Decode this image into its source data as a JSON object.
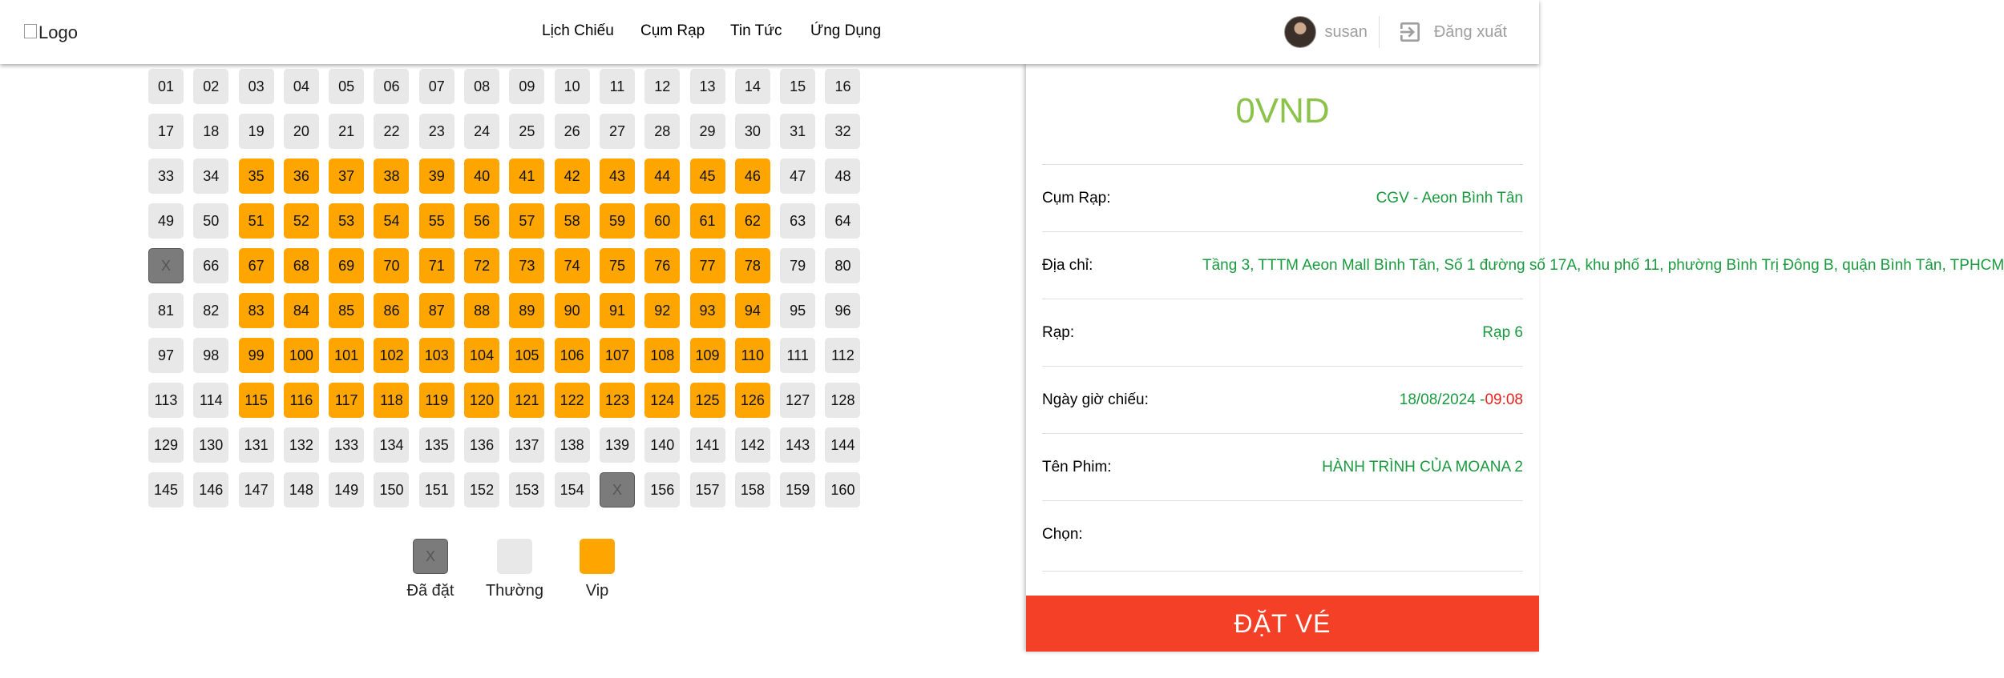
{
  "header": {
    "logo_alt": "Logo",
    "nav": [
      {
        "label": "Lịch Chiếu"
      },
      {
        "label": "Cụm Rạp"
      },
      {
        "label": "Tin Tức"
      },
      {
        "label": "Ứng Dụng"
      }
    ],
    "username": "susan",
    "logout_label": "Đăng xuất"
  },
  "seats": {
    "booked_marker": "X",
    "list": [
      {
        "label": "01",
        "type": "normal"
      },
      {
        "label": "02",
        "type": "normal"
      },
      {
        "label": "03",
        "type": "normal"
      },
      {
        "label": "04",
        "type": "normal"
      },
      {
        "label": "05",
        "type": "normal"
      },
      {
        "label": "06",
        "type": "normal"
      },
      {
        "label": "07",
        "type": "normal"
      },
      {
        "label": "08",
        "type": "normal"
      },
      {
        "label": "09",
        "type": "normal"
      },
      {
        "label": "10",
        "type": "normal"
      },
      {
        "label": "11",
        "type": "normal"
      },
      {
        "label": "12",
        "type": "normal"
      },
      {
        "label": "13",
        "type": "normal"
      },
      {
        "label": "14",
        "type": "normal"
      },
      {
        "label": "15",
        "type": "normal"
      },
      {
        "label": "16",
        "type": "normal"
      },
      {
        "label": "17",
        "type": "normal"
      },
      {
        "label": "18",
        "type": "normal"
      },
      {
        "label": "19",
        "type": "normal"
      },
      {
        "label": "20",
        "type": "normal"
      },
      {
        "label": "21",
        "type": "normal"
      },
      {
        "label": "22",
        "type": "normal"
      },
      {
        "label": "23",
        "type": "normal"
      },
      {
        "label": "24",
        "type": "normal"
      },
      {
        "label": "25",
        "type": "normal"
      },
      {
        "label": "26",
        "type": "normal"
      },
      {
        "label": "27",
        "type": "normal"
      },
      {
        "label": "28",
        "type": "normal"
      },
      {
        "label": "29",
        "type": "normal"
      },
      {
        "label": "30",
        "type": "normal"
      },
      {
        "label": "31",
        "type": "normal"
      },
      {
        "label": "32",
        "type": "normal"
      },
      {
        "label": "33",
        "type": "normal"
      },
      {
        "label": "34",
        "type": "normal"
      },
      {
        "label": "35",
        "type": "vip"
      },
      {
        "label": "36",
        "type": "vip"
      },
      {
        "label": "37",
        "type": "vip"
      },
      {
        "label": "38",
        "type": "vip"
      },
      {
        "label": "39",
        "type": "vip"
      },
      {
        "label": "40",
        "type": "vip"
      },
      {
        "label": "41",
        "type": "vip"
      },
      {
        "label": "42",
        "type": "vip"
      },
      {
        "label": "43",
        "type": "vip"
      },
      {
        "label": "44",
        "type": "vip"
      },
      {
        "label": "45",
        "type": "vip"
      },
      {
        "label": "46",
        "type": "vip"
      },
      {
        "label": "47",
        "type": "normal"
      },
      {
        "label": "48",
        "type": "normal"
      },
      {
        "label": "49",
        "type": "normal"
      },
      {
        "label": "50",
        "type": "normal"
      },
      {
        "label": "51",
        "type": "vip"
      },
      {
        "label": "52",
        "type": "vip"
      },
      {
        "label": "53",
        "type": "vip"
      },
      {
        "label": "54",
        "type": "vip"
      },
      {
        "label": "55",
        "type": "vip"
      },
      {
        "label": "56",
        "type": "vip"
      },
      {
        "label": "57",
        "type": "vip"
      },
      {
        "label": "58",
        "type": "vip"
      },
      {
        "label": "59",
        "type": "vip"
      },
      {
        "label": "60",
        "type": "vip"
      },
      {
        "label": "61",
        "type": "vip"
      },
      {
        "label": "62",
        "type": "vip"
      },
      {
        "label": "63",
        "type": "normal"
      },
      {
        "label": "64",
        "type": "normal"
      },
      {
        "label": "X",
        "type": "booked"
      },
      {
        "label": "66",
        "type": "normal"
      },
      {
        "label": "67",
        "type": "vip"
      },
      {
        "label": "68",
        "type": "vip"
      },
      {
        "label": "69",
        "type": "vip"
      },
      {
        "label": "70",
        "type": "vip"
      },
      {
        "label": "71",
        "type": "vip"
      },
      {
        "label": "72",
        "type": "vip"
      },
      {
        "label": "73",
        "type": "vip"
      },
      {
        "label": "74",
        "type": "vip"
      },
      {
        "label": "75",
        "type": "vip"
      },
      {
        "label": "76",
        "type": "vip"
      },
      {
        "label": "77",
        "type": "vip"
      },
      {
        "label": "78",
        "type": "vip"
      },
      {
        "label": "79",
        "type": "normal"
      },
      {
        "label": "80",
        "type": "normal"
      },
      {
        "label": "81",
        "type": "normal"
      },
      {
        "label": "82",
        "type": "normal"
      },
      {
        "label": "83",
        "type": "vip"
      },
      {
        "label": "84",
        "type": "vip"
      },
      {
        "label": "85",
        "type": "vip"
      },
      {
        "label": "86",
        "type": "vip"
      },
      {
        "label": "87",
        "type": "vip"
      },
      {
        "label": "88",
        "type": "vip"
      },
      {
        "label": "89",
        "type": "vip"
      },
      {
        "label": "90",
        "type": "vip"
      },
      {
        "label": "91",
        "type": "vip"
      },
      {
        "label": "92",
        "type": "vip"
      },
      {
        "label": "93",
        "type": "vip"
      },
      {
        "label": "94",
        "type": "vip"
      },
      {
        "label": "95",
        "type": "normal"
      },
      {
        "label": "96",
        "type": "normal"
      },
      {
        "label": "97",
        "type": "normal"
      },
      {
        "label": "98",
        "type": "normal"
      },
      {
        "label": "99",
        "type": "vip"
      },
      {
        "label": "100",
        "type": "vip"
      },
      {
        "label": "101",
        "type": "vip"
      },
      {
        "label": "102",
        "type": "vip"
      },
      {
        "label": "103",
        "type": "vip"
      },
      {
        "label": "104",
        "type": "vip"
      },
      {
        "label": "105",
        "type": "vip"
      },
      {
        "label": "106",
        "type": "vip"
      },
      {
        "label": "107",
        "type": "vip"
      },
      {
        "label": "108",
        "type": "vip"
      },
      {
        "label": "109",
        "type": "vip"
      },
      {
        "label": "110",
        "type": "vip"
      },
      {
        "label": "111",
        "type": "normal"
      },
      {
        "label": "112",
        "type": "normal"
      },
      {
        "label": "113",
        "type": "normal"
      },
      {
        "label": "114",
        "type": "normal"
      },
      {
        "label": "115",
        "type": "vip"
      },
      {
        "label": "116",
        "type": "vip"
      },
      {
        "label": "117",
        "type": "vip"
      },
      {
        "label": "118",
        "type": "vip"
      },
      {
        "label": "119",
        "type": "vip"
      },
      {
        "label": "120",
        "type": "vip"
      },
      {
        "label": "121",
        "type": "vip"
      },
      {
        "label": "122",
        "type": "vip"
      },
      {
        "label": "123",
        "type": "vip"
      },
      {
        "label": "124",
        "type": "vip"
      },
      {
        "label": "125",
        "type": "vip"
      },
      {
        "label": "126",
        "type": "vip"
      },
      {
        "label": "127",
        "type": "normal"
      },
      {
        "label": "128",
        "type": "normal"
      },
      {
        "label": "129",
        "type": "normal"
      },
      {
        "label": "130",
        "type": "normal"
      },
      {
        "label": "131",
        "type": "normal"
      },
      {
        "label": "132",
        "type": "normal"
      },
      {
        "label": "133",
        "type": "normal"
      },
      {
        "label": "134",
        "type": "normal"
      },
      {
        "label": "135",
        "type": "normal"
      },
      {
        "label": "136",
        "type": "normal"
      },
      {
        "label": "137",
        "type": "normal"
      },
      {
        "label": "138",
        "type": "normal"
      },
      {
        "label": "139",
        "type": "normal"
      },
      {
        "label": "140",
        "type": "normal"
      },
      {
        "label": "141",
        "type": "normal"
      },
      {
        "label": "142",
        "type": "normal"
      },
      {
        "label": "143",
        "type": "normal"
      },
      {
        "label": "144",
        "type": "normal"
      },
      {
        "label": "145",
        "type": "normal"
      },
      {
        "label": "146",
        "type": "normal"
      },
      {
        "label": "147",
        "type": "normal"
      },
      {
        "label": "148",
        "type": "normal"
      },
      {
        "label": "149",
        "type": "normal"
      },
      {
        "label": "150",
        "type": "normal"
      },
      {
        "label": "151",
        "type": "normal"
      },
      {
        "label": "152",
        "type": "normal"
      },
      {
        "label": "153",
        "type": "normal"
      },
      {
        "label": "154",
        "type": "normal"
      },
      {
        "label": "X",
        "type": "booked"
      },
      {
        "label": "156",
        "type": "normal"
      },
      {
        "label": "157",
        "type": "normal"
      },
      {
        "label": "158",
        "type": "normal"
      },
      {
        "label": "159",
        "type": "normal"
      },
      {
        "label": "160",
        "type": "normal"
      }
    ]
  },
  "legend": [
    {
      "label": "Đã đặt",
      "type": "booked",
      "box_text": "X"
    },
    {
      "label": "Thường",
      "type": "normal",
      "box_text": ""
    },
    {
      "label": "Vip",
      "type": "vip",
      "box_text": ""
    }
  ],
  "booking": {
    "total": "0VND",
    "rows": {
      "cinema_cluster": {
        "label": "Cụm Rạp:",
        "value": "CGV - Aeon Bình Tân"
      },
      "address": {
        "label": "Địa chỉ:",
        "value": "Tầng 3, TTTM Aeon Mall Bình Tân, Số 1 đường số 17A, khu phố 11, phường Bình Trị Đông B, quận Bình Tân, TPHCM"
      },
      "theater": {
        "label": "Rạp:",
        "value": "Rạp 6"
      },
      "showtime": {
        "label": "Ngày giờ chiếu:",
        "date": "18/08/2024 -",
        "time": "09:08"
      },
      "movie": {
        "label": "Tên Phim:",
        "value": "HÀNH TRÌNH CỦA MOANA 2"
      },
      "selected": {
        "label": "Chọn:",
        "value": ""
      }
    },
    "book_button": "ĐẶT VÉ"
  },
  "colors": {
    "vip_seat": "#ffa500",
    "normal_seat": "#e8e8e8",
    "booked_seat": "#7b7b7b",
    "total_price": "#8bc34a",
    "info_value": "#1a9a3f",
    "time_value": "#e8221f",
    "book_button": "#f44027"
  }
}
